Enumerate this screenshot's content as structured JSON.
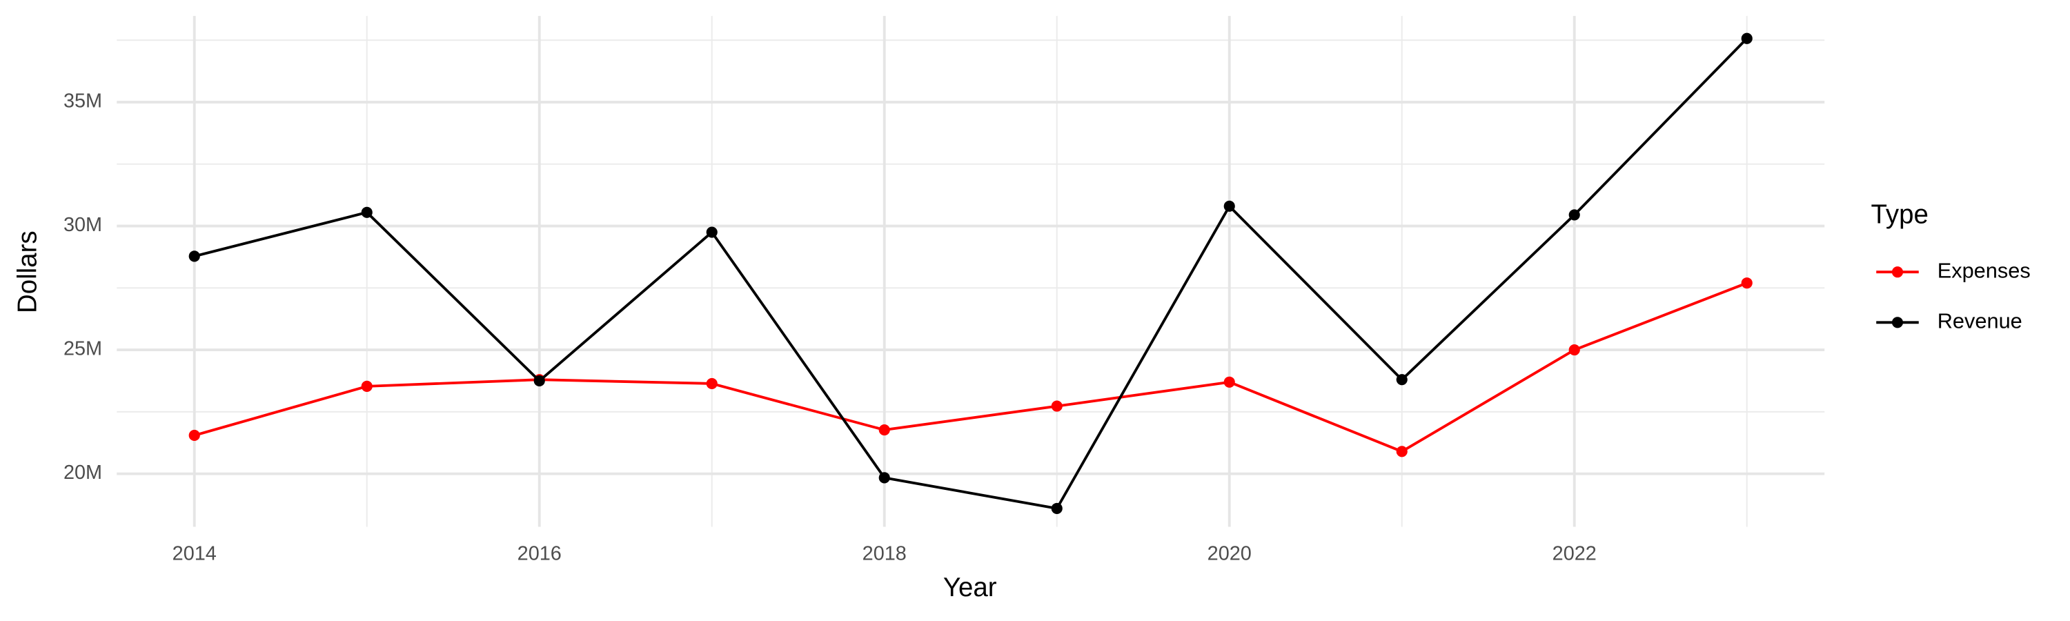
{
  "chart_data": {
    "type": "line",
    "x_label": "Year",
    "y_label": "Dollars",
    "legend_title": "Type",
    "x": [
      2014,
      2015,
      2016,
      2017,
      2018,
      2019,
      2020,
      2021,
      2022,
      2023
    ],
    "series": [
      {
        "name": "Expenses",
        "color": "#ff0000",
        "values": [
          21550000,
          23530000,
          23800000,
          23640000,
          21770000,
          22730000,
          23700000,
          20900000,
          25000000,
          27700000
        ]
      },
      {
        "name": "Revenue",
        "color": "#000000",
        "values": [
          28780000,
          30550000,
          23750000,
          29750000,
          19840000,
          18600000,
          30800000,
          23800000,
          30450000,
          37570000
        ]
      }
    ],
    "xlim": [
      2013.55,
      2023.45
    ],
    "xticks": [
      2014,
      2016,
      2018,
      2020,
      2022
    ],
    "x_minor_ticks": [
      2015,
      2017,
      2019,
      2021,
      2023
    ],
    "ylim": [
      17860000,
      38480000
    ],
    "yticks": [
      {
        "value": 20000000,
        "label": "20M"
      },
      {
        "value": 25000000,
        "label": "25M"
      },
      {
        "value": 30000000,
        "label": "30M"
      },
      {
        "value": 35000000,
        "label": "35M"
      }
    ],
    "y_minor_ticks": [
      22500000,
      27500000,
      32500000,
      37500000
    ],
    "grid": true,
    "legend": "right"
  }
}
